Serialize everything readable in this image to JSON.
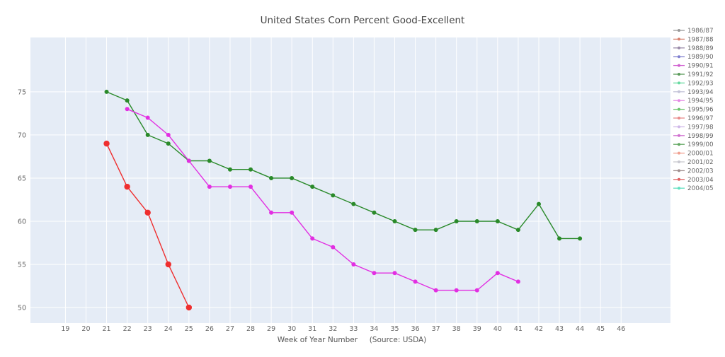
{
  "chart_data": {
    "type": "line",
    "title": "United States Corn Percent Good-Excellent",
    "xlabel": "Week of Year Number     (Source: USDA)",
    "ylabel": "",
    "xlim": [
      17.3,
      48.4
    ],
    "ylim": [
      48.2,
      81.3
    ],
    "x_ticks": [
      19,
      20,
      21,
      22,
      23,
      24,
      25,
      26,
      27,
      28,
      29,
      30,
      31,
      32,
      33,
      34,
      35,
      36,
      37,
      38,
      39,
      40,
      41,
      42,
      43,
      44,
      45,
      46
    ],
    "y_ticks": [
      50,
      55,
      60,
      65,
      70,
      75
    ],
    "grid": true,
    "legend_position": "right",
    "legend": [
      {
        "name": "1986/87",
        "color": "#999999"
      },
      {
        "name": "1987/88",
        "color": "#d7816e"
      },
      {
        "name": "1988/89",
        "color": "#9a8aa8"
      },
      {
        "name": "1989/90",
        "color": "#7f7fcf"
      },
      {
        "name": "1990/91",
        "color": "#d060d0"
      },
      {
        "name": "1991/92",
        "color": "#5a9a5a"
      },
      {
        "name": "1992/93",
        "color": "#66d9a0"
      },
      {
        "name": "1993/94",
        "color": "#c4c4d8"
      },
      {
        "name": "1994/95",
        "color": "#e58ae5"
      },
      {
        "name": "1995/96",
        "color": "#6cc46c"
      },
      {
        "name": "1996/97",
        "color": "#e88a8a"
      },
      {
        "name": "1997/98",
        "color": "#cfb7e8"
      },
      {
        "name": "1998/99",
        "color": "#d070d0"
      },
      {
        "name": "1999/00",
        "color": "#62a862"
      },
      {
        "name": "2000/01",
        "color": "#f0a090"
      },
      {
        "name": "2001/02",
        "color": "#c8c8d0"
      },
      {
        "name": "2002/03",
        "color": "#a09090"
      },
      {
        "name": "2003/04",
        "color": "#e06060"
      },
      {
        "name": "2004/05",
        "color": "#60e0c0"
      }
    ],
    "series": [
      {
        "color": "#2a8a2a",
        "marker_size": 3,
        "x": [
          21,
          22,
          23,
          24,
          25,
          26,
          27,
          28,
          29,
          30,
          31,
          32,
          33,
          34,
          35,
          36,
          37,
          38,
          39,
          40,
          41,
          42,
          43,
          44
        ],
        "y": [
          75,
          74,
          70,
          69,
          67,
          67,
          66,
          66,
          65,
          65,
          64,
          63,
          62,
          61,
          60,
          59,
          59,
          60,
          60,
          60,
          59,
          62,
          58,
          58
        ]
      },
      {
        "color": "#e22fe2",
        "marker_size": 3,
        "x": [
          22,
          23,
          24,
          25,
          26,
          27,
          28,
          29,
          30,
          31,
          32,
          33,
          34,
          35,
          36,
          37,
          38,
          39,
          40,
          41
        ],
        "y": [
          73,
          72,
          70,
          67,
          64,
          64,
          64,
          61,
          61,
          58,
          57,
          55,
          54,
          54,
          53,
          52,
          52,
          52,
          54,
          53
        ]
      },
      {
        "color": "#ef2e2e",
        "marker_size": 4.2,
        "x": [
          21,
          22,
          23,
          24,
          25
        ],
        "y": [
          69,
          64,
          61,
          55,
          50
        ]
      }
    ]
  }
}
